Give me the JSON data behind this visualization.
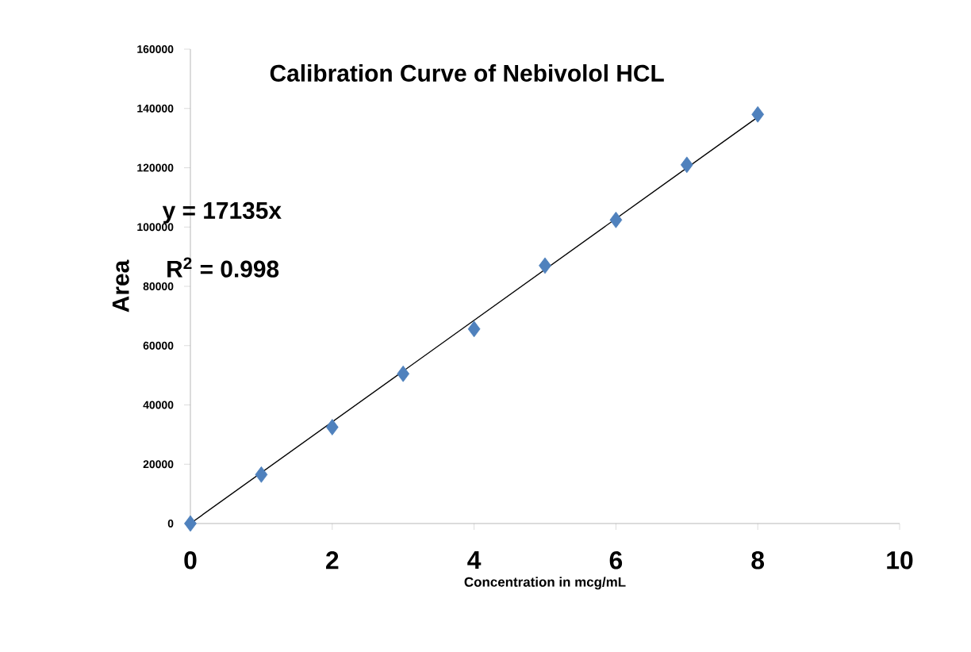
{
  "chart_data": {
    "type": "scatter",
    "title": "Calibration Curve of Nebivolol HCL",
    "xlabel": "Concentration in mcg/mL",
    "ylabel": "Area",
    "annotations": [
      "y = 17135x",
      "R$^{2}$ = 0.998"
    ],
    "series": [
      {
        "color": "#4f81bd",
        "marker": "diamond",
        "x": [
          0,
          1,
          2,
          3,
          4,
          5,
          6,
          7,
          8
        ],
        "values": [
          0,
          16500,
          32500,
          50500,
          65600,
          87000,
          102400,
          121000,
          138000
        ]
      },
      {
        "type": "line",
        "color": "#000000",
        "marker": "none",
        "line_style": "solid",
        "x": [
          0,
          8
        ],
        "values": [
          0,
          137100
        ]
      }
    ],
    "xlim": [
      0,
      10
    ],
    "xticks": [
      0,
      2,
      4,
      6,
      8,
      10
    ],
    "ylim": [
      0,
      160000
    ],
    "yticks": [
      0,
      20000,
      40000,
      60000,
      80000,
      100000,
      120000,
      140000,
      160000
    ],
    "grid": false
  }
}
